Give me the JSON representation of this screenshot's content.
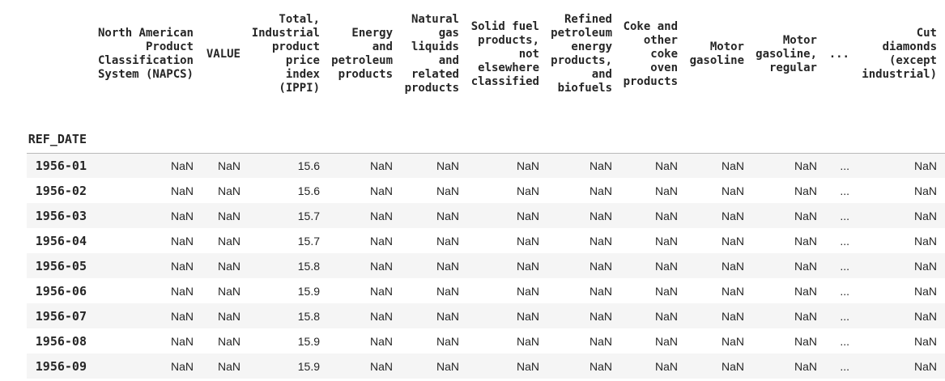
{
  "colors": {
    "row_stripe": "#f5f5f5",
    "header_border": "#b9b9b9",
    "text": "#262626",
    "background": "#ffffff"
  },
  "chart_data": {
    "type": "table",
    "index_name": "REF_DATE",
    "columns": [
      "North American Product Classification System (NAPCS)",
      "VALUE",
      "Total, Industrial product price index (IPPI)",
      "Energy and petroleum products",
      "Natural gas liquids and related products",
      "Solid fuel products, not elsewhere classified",
      "Refined petroleum energy products, and biofuels",
      "Coke and other coke oven products",
      "Motor gasoline",
      "Motor gasoline, regular",
      "...",
      "Cut diamonds (except industrial)"
    ],
    "rows": [
      {
        "index": "1956-01",
        "values": [
          "NaN",
          "NaN",
          "15.6",
          "NaN",
          "NaN",
          "NaN",
          "NaN",
          "NaN",
          "NaN",
          "NaN",
          "...",
          "NaN"
        ]
      },
      {
        "index": "1956-02",
        "values": [
          "NaN",
          "NaN",
          "15.6",
          "NaN",
          "NaN",
          "NaN",
          "NaN",
          "NaN",
          "NaN",
          "NaN",
          "...",
          "NaN"
        ]
      },
      {
        "index": "1956-03",
        "values": [
          "NaN",
          "NaN",
          "15.7",
          "NaN",
          "NaN",
          "NaN",
          "NaN",
          "NaN",
          "NaN",
          "NaN",
          "...",
          "NaN"
        ]
      },
      {
        "index": "1956-04",
        "values": [
          "NaN",
          "NaN",
          "15.7",
          "NaN",
          "NaN",
          "NaN",
          "NaN",
          "NaN",
          "NaN",
          "NaN",
          "...",
          "NaN"
        ]
      },
      {
        "index": "1956-05",
        "values": [
          "NaN",
          "NaN",
          "15.8",
          "NaN",
          "NaN",
          "NaN",
          "NaN",
          "NaN",
          "NaN",
          "NaN",
          "...",
          "NaN"
        ]
      },
      {
        "index": "1956-06",
        "values": [
          "NaN",
          "NaN",
          "15.9",
          "NaN",
          "NaN",
          "NaN",
          "NaN",
          "NaN",
          "NaN",
          "NaN",
          "...",
          "NaN"
        ]
      },
      {
        "index": "1956-07",
        "values": [
          "NaN",
          "NaN",
          "15.8",
          "NaN",
          "NaN",
          "NaN",
          "NaN",
          "NaN",
          "NaN",
          "NaN",
          "...",
          "NaN"
        ]
      },
      {
        "index": "1956-08",
        "values": [
          "NaN",
          "NaN",
          "15.9",
          "NaN",
          "NaN",
          "NaN",
          "NaN",
          "NaN",
          "NaN",
          "NaN",
          "...",
          "NaN"
        ]
      },
      {
        "index": "1956-09",
        "values": [
          "NaN",
          "NaN",
          "15.9",
          "NaN",
          "NaN",
          "NaN",
          "NaN",
          "NaN",
          "NaN",
          "NaN",
          "...",
          "NaN"
        ]
      }
    ]
  }
}
